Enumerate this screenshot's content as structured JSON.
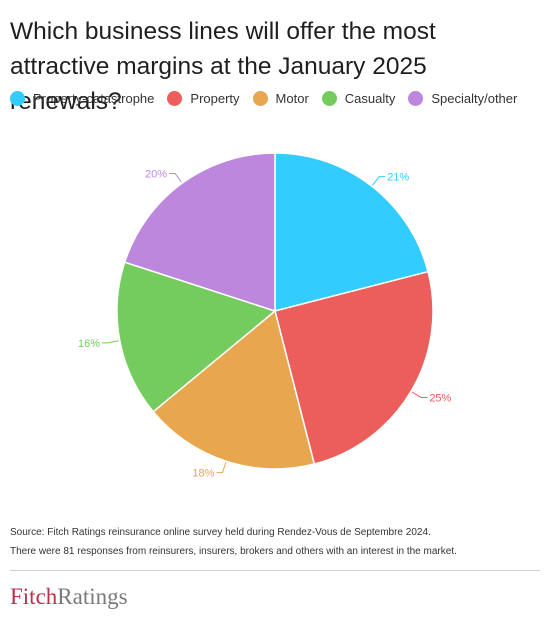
{
  "title": "Which business lines will offer the most attractive margins at the January 2025 renewals?",
  "chart_data": {
    "type": "pie",
    "title": "Which business lines will offer the most attractive margins at the January 2025 renewals?",
    "legend_position": "top",
    "slices": [
      {
        "label": "Property-catastrophe",
        "value": 21,
        "display": "21%",
        "color": "#33ccff"
      },
      {
        "label": "Property",
        "value": 25,
        "display": "25%",
        "color": "#eb5e5c"
      },
      {
        "label": "Motor",
        "value": 18,
        "display": "18%",
        "color": "#e8a74e"
      },
      {
        "label": "Casualty",
        "value": 16,
        "display": "16%",
        "color": "#74cc5e"
      },
      {
        "label": "Specialty/other",
        "value": 20,
        "display": "20%",
        "color": "#bd87de"
      }
    ]
  },
  "footer": {
    "source": "Source: Fitch Ratings reinsurance online survey held during Rendez-Vous de Septembre 2024.",
    "note": "There were 81 responses from reinsurers, insurers, brokers and others with an interest in the market."
  },
  "logo": {
    "part1": "Fitch",
    "part2": "Ratings"
  }
}
